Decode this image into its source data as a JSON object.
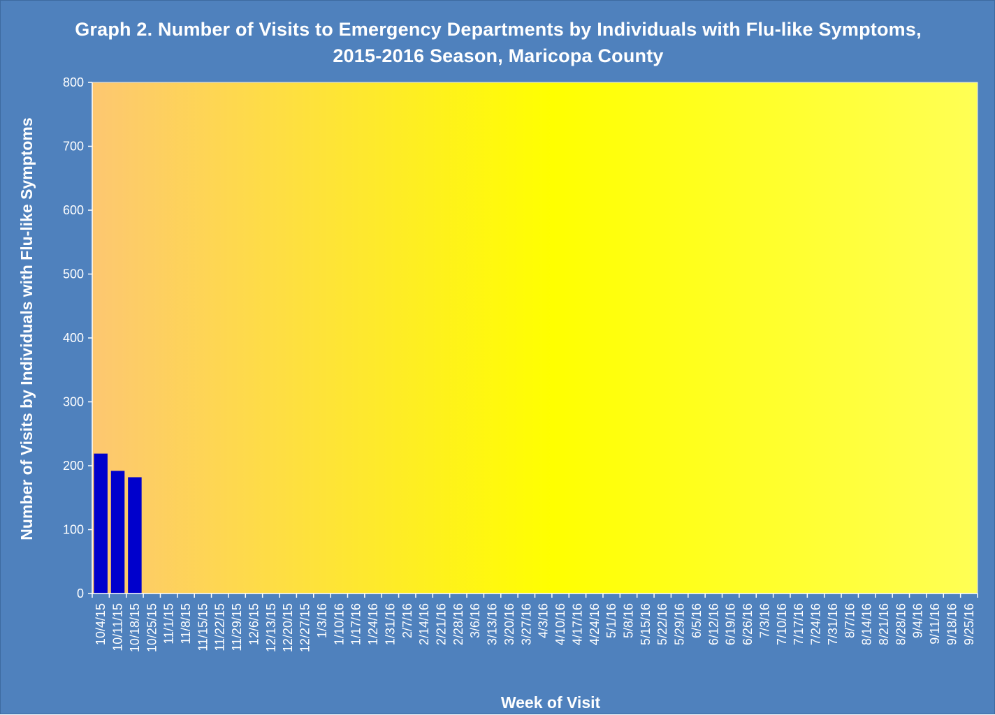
{
  "chart_data": {
    "type": "bar",
    "title": [
      "Graph 2. Number of Visits to Emergency Departments by Individuals with Flu-like Symptoms,",
      "2015-2016 Season, Maricopa County"
    ],
    "xlabel": "Week of Visit",
    "ylabel": "Number of Visits by Individuals with Flu-like Symptoms",
    "ylim": [
      0,
      800
    ],
    "yticks": [
      "0",
      "100",
      "200",
      "300",
      "400",
      "500",
      "600",
      "700",
      "800"
    ],
    "grid": false,
    "legend": "none",
    "categories": [
      "10/4/15",
      "10/11/15",
      "10/18/15",
      "10/25/15",
      "11/1/15",
      "11/8/15",
      "11/15/15",
      "11/22/15",
      "11/29/15",
      "12/6/15",
      "12/13/15",
      "12/20/15",
      "12/27/15",
      "1/3/16",
      "1/10/16",
      "1/17/16",
      "1/24/16",
      "1/31/16",
      "2/7/16",
      "2/14/16",
      "2/21/16",
      "2/28/16",
      "3/6/16",
      "3/13/16",
      "3/20/16",
      "3/27/16",
      "4/3/16",
      "4/10/16",
      "4/17/16",
      "4/24/16",
      "5/1/16",
      "5/8/16",
      "5/15/16",
      "5/22/16",
      "5/29/16",
      "6/5/16",
      "6/12/16",
      "6/19/16",
      "6/26/16",
      "7/3/16",
      "7/10/16",
      "7/17/16",
      "7/24/16",
      "7/31/16",
      "8/7/16",
      "8/14/16",
      "8/21/16",
      "8/28/16",
      "9/4/16",
      "9/11/16",
      "9/18/16",
      "9/25/16"
    ],
    "values": [
      219,
      192,
      182,
      null,
      null,
      null,
      null,
      null,
      null,
      null,
      null,
      null,
      null,
      null,
      null,
      null,
      null,
      null,
      null,
      null,
      null,
      null,
      null,
      null,
      null,
      null,
      null,
      null,
      null,
      null,
      null,
      null,
      null,
      null,
      null,
      null,
      null,
      null,
      null,
      null,
      null,
      null,
      null,
      null,
      null,
      null,
      null,
      null,
      null,
      null,
      null,
      null
    ],
    "colors": {
      "background": "#4f81bd",
      "bar": "#0000cc",
      "plot_gradient": [
        "#fdc771",
        "#ffff00",
        "#ffff55"
      ],
      "text": "#ffffff"
    }
  }
}
